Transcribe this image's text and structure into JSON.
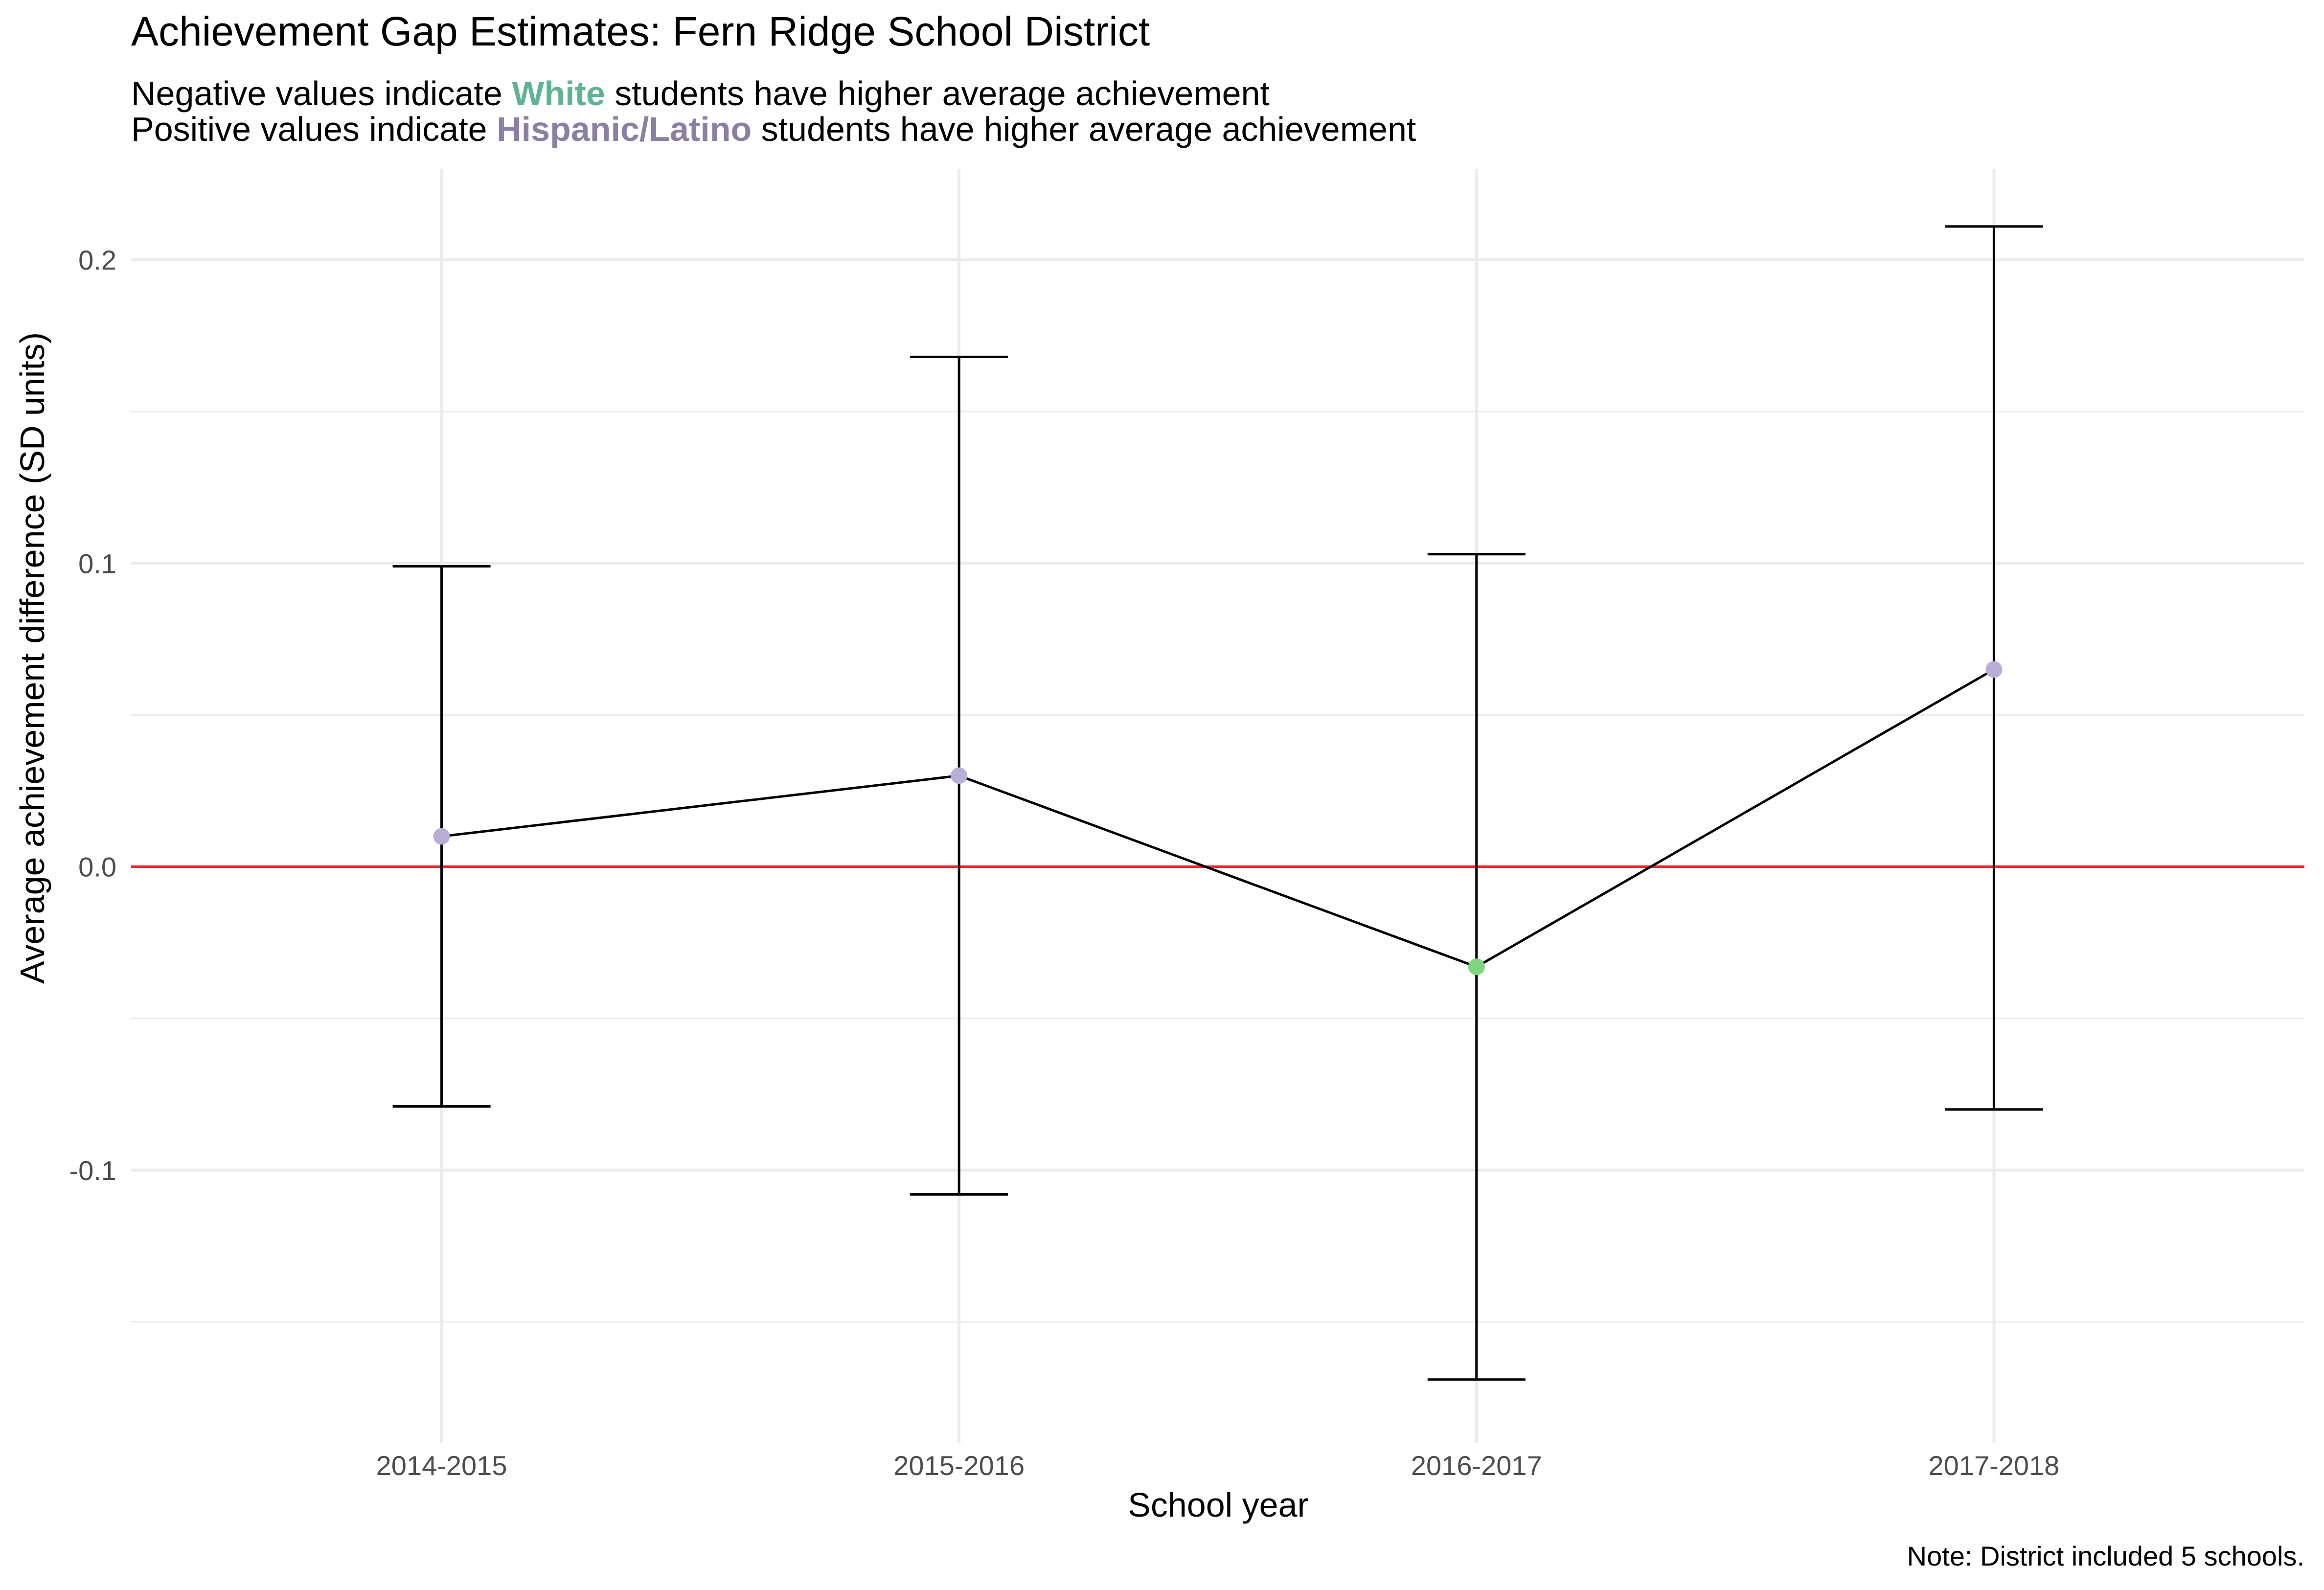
{
  "chart_data": {
    "type": "line",
    "title": "Achievement Gap Estimates: Fern Ridge School District",
    "subtitle": [
      {
        "before": "Negative values indicate ",
        "highlight": "White",
        "after": " students have higher average achievement",
        "highlight_color": "#5FB392"
      },
      {
        "before": "Positive values indicate ",
        "highlight": "Hispanic/Latino",
        "after": " students have higher average achievement",
        "highlight_color": "#8B7FA3"
      }
    ],
    "xlabel": "School year",
    "ylabel": "Average achievement difference (SD units)",
    "caption": "Note: District included 5 schools.",
    "categories": [
      "2014-2015",
      "2015-2016",
      "2016-2017",
      "2017-2018"
    ],
    "series": [
      {
        "values": [
          0.01,
          0.03,
          -0.033,
          0.065
        ],
        "lower": [
          -0.079,
          -0.108,
          -0.169,
          -0.08
        ],
        "upper": [
          0.099,
          0.168,
          0.103,
          0.211
        ]
      }
    ],
    "ylim": [
      -0.19,
      0.23
    ],
    "yticks": [
      -0.1,
      0.0,
      0.1,
      0.2
    ],
    "ytick_labels": [
      "-0.1",
      "0.0",
      "0.1",
      "0.2"
    ],
    "reference_line": {
      "y": 0,
      "color": "#E8282D"
    },
    "point_colors": {
      "positive": "#B9AED6",
      "negative": "#7DD67B"
    },
    "line_color": "#000000",
    "grid": true,
    "legend": "none"
  }
}
